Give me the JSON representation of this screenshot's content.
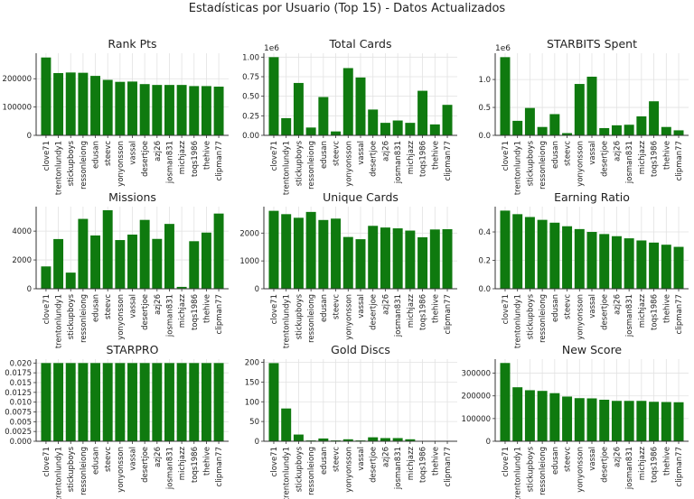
{
  "suptitle": "Estadísticas por Usuario (Top 15) - Datos Actualizados",
  "colors": {
    "bar": "#0f7a0f",
    "grid": "#e2e2e2",
    "axis": "#333333"
  },
  "chart_data": [
    {
      "type": "bar",
      "title": "Rank Pts",
      "offset_label": "",
      "categories": [
        "clove71",
        "trentonlundy1",
        "stickupboys",
        "ressonleiong",
        "edusan",
        "steevc",
        "yonyonsson",
        "vassal",
        "desertjoe",
        "azj26",
        "josman831",
        "michjazz",
        "toqs1986",
        "thehive",
        "clipman77"
      ],
      "values": [
        275000,
        220000,
        222000,
        221000,
        210000,
        196000,
        189000,
        190000,
        181000,
        178000,
        178000,
        178000,
        174000,
        174000,
        172000
      ],
      "ylim": [
        0,
        290000
      ],
      "yticks": [
        0,
        100000,
        200000
      ],
      "ytick_labels": [
        "0",
        "100000",
        "200000"
      ]
    },
    {
      "type": "bar",
      "title": "Total Cards",
      "offset_label": "1e6",
      "categories": [
        "clove71",
        "trentonlundy1",
        "stickupboys",
        "ressonleiong",
        "edusan",
        "steevc",
        "yonyonsson",
        "vassal",
        "desertjoe",
        "azj26",
        "josman831",
        "michjazz",
        "toqs1986",
        "thehive",
        "clipman77"
      ],
      "values": [
        1000000,
        220000,
        670000,
        100000,
        490000,
        50000,
        860000,
        740000,
        330000,
        160000,
        190000,
        160000,
        570000,
        140000,
        390000
      ],
      "ylim": [
        0,
        1050000
      ],
      "yticks": [
        0,
        250000,
        500000,
        750000,
        1000000
      ],
      "ytick_labels": [
        "0.00",
        "0.25",
        "0.50",
        "0.75",
        "1.00"
      ]
    },
    {
      "type": "bar",
      "title": "STARBITS Spent",
      "offset_label": "1e6",
      "categories": [
        "clove71",
        "trentonlundy1",
        "stickupboys",
        "ressonleiong",
        "edusan",
        "steevc",
        "yonyonsson",
        "vassal",
        "desertjoe",
        "azj26",
        "josman831",
        "michjazz",
        "toqs1986",
        "thehive",
        "clipman77"
      ],
      "values": [
        1400000,
        260000,
        490000,
        150000,
        380000,
        40000,
        920000,
        1050000,
        130000,
        180000,
        190000,
        340000,
        610000,
        150000,
        90000
      ],
      "ylim": [
        0,
        1470000
      ],
      "yticks": [
        0,
        500000,
        1000000
      ],
      "ytick_labels": [
        "0.0",
        "0.5",
        "1.0"
      ]
    },
    {
      "type": "bar",
      "title": "Missions",
      "offset_label": "",
      "categories": [
        "clove71",
        "trentonlundy1",
        "stickupboys",
        "ressonleiong",
        "edusan",
        "steevc",
        "yonyonsson",
        "vassal",
        "desertjoe",
        "azj26",
        "josman831",
        "michjazz",
        "toqs1986",
        "thehive",
        "clipman77"
      ],
      "values": [
        1550,
        3450,
        1120,
        4850,
        3700,
        5450,
        3380,
        3760,
        4780,
        3460,
        4500,
        130,
        3300,
        3900,
        5220
      ],
      "ylim": [
        0,
        5700
      ],
      "yticks": [
        0,
        2000,
        4000
      ],
      "ytick_labels": [
        "0",
        "2000",
        "4000"
      ]
    },
    {
      "type": "bar",
      "title": "Unique Cards",
      "offset_label": "",
      "categories": [
        "clove71",
        "trentonlundy1",
        "stickupboys",
        "ressonleiong",
        "edusan",
        "steevc",
        "yonyonsson",
        "vassal",
        "desertjoe",
        "azj26",
        "josman831",
        "michjazz",
        "toqs1986",
        "thehive",
        "clipman77"
      ],
      "values": [
        2800,
        2680,
        2550,
        2760,
        2470,
        2520,
        1860,
        1780,
        2260,
        2200,
        2170,
        2090,
        1850,
        2130,
        2140
      ],
      "ylim": [
        0,
        2950
      ],
      "yticks": [
        0,
        1000,
        2000
      ],
      "ytick_labels": [
        "0",
        "1000",
        "2000"
      ]
    },
    {
      "type": "bar",
      "title": "Earning Ratio",
      "offset_label": "",
      "categories": [
        "clove71",
        "trentonlundy1",
        "stickupboys",
        "ressonleiong",
        "edusan",
        "steevc",
        "yonyonsson",
        "vassal",
        "desertjoe",
        "azj26",
        "josman831",
        "michjazz",
        "toqs1986",
        "thehive",
        "clipman77"
      ],
      "values": [
        0.55,
        0.525,
        0.505,
        0.485,
        0.465,
        0.44,
        0.42,
        0.4,
        0.385,
        0.37,
        0.355,
        0.34,
        0.325,
        0.31,
        0.295
      ],
      "ylim": [
        0,
        0.578
      ],
      "yticks": [
        0,
        0.2,
        0.4
      ],
      "ytick_labels": [
        "0.0",
        "0.2",
        "0.4"
      ]
    },
    {
      "type": "bar",
      "title": "STARPRO",
      "offset_label": "",
      "categories": [
        "clove71",
        "trentonlundy1",
        "stickupboys",
        "ressonleiong",
        "edusan",
        "steevc",
        "yonyonsson",
        "vassal",
        "desertjoe",
        "azj26",
        "josman831",
        "michjazz",
        "toqs1986",
        "thehive",
        "clipman77"
      ],
      "values": [
        0.02,
        0.02,
        0.02,
        0.02,
        0.02,
        0.02,
        0.02,
        0.02,
        0.02,
        0.02,
        0.02,
        0.02,
        0.02,
        0.02,
        0.02
      ],
      "ylim": [
        0,
        0.021
      ],
      "yticks": [
        0,
        0.0025,
        0.005,
        0.0075,
        0.01,
        0.0125,
        0.015,
        0.0175,
        0.02
      ],
      "ytick_labels": [
        "0.000",
        "0.0025",
        "0.005",
        "0.0075",
        "0.010",
        "0.0125",
        "0.015",
        "0.0175",
        "0.020"
      ]
    },
    {
      "type": "bar",
      "title": "Gold Discs",
      "offset_label": "",
      "categories": [
        "clove71",
        "trentonlundy1",
        "stickupboys",
        "ressonleiong",
        "edusan",
        "steevc",
        "yonyonsson",
        "vassal",
        "desertjoe",
        "azj26",
        "josman831",
        "michjazz",
        "toqs1986",
        "thehive",
        "clipman77"
      ],
      "values": [
        198,
        83,
        17,
        2,
        7,
        2,
        5,
        2,
        10,
        8,
        8,
        5,
        1,
        1,
        1
      ],
      "ylim": [
        0,
        208
      ],
      "yticks": [
        0,
        50,
        100,
        150,
        200
      ],
      "ytick_labels": [
        "0",
        "50",
        "100",
        "150",
        "200"
      ]
    },
    {
      "type": "bar",
      "title": "New Score",
      "offset_label": "",
      "categories": [
        "clove71",
        "trentonlundy1",
        "stickupboys",
        "ressonleiong",
        "edusan",
        "steevc",
        "yonyonsson",
        "vassal",
        "desertjoe",
        "azj26",
        "josman831",
        "michjazz",
        "toqs1986",
        "thehive",
        "clipman77"
      ],
      "values": [
        345000,
        238000,
        225000,
        222000,
        212000,
        197000,
        190000,
        189000,
        183000,
        178000,
        178000,
        178000,
        174000,
        173000,
        172000
      ],
      "ylim": [
        0,
        362000
      ],
      "yticks": [
        0,
        100000,
        200000,
        300000
      ],
      "ytick_labels": [
        "0",
        "100000",
        "200000",
        "300000"
      ]
    }
  ]
}
